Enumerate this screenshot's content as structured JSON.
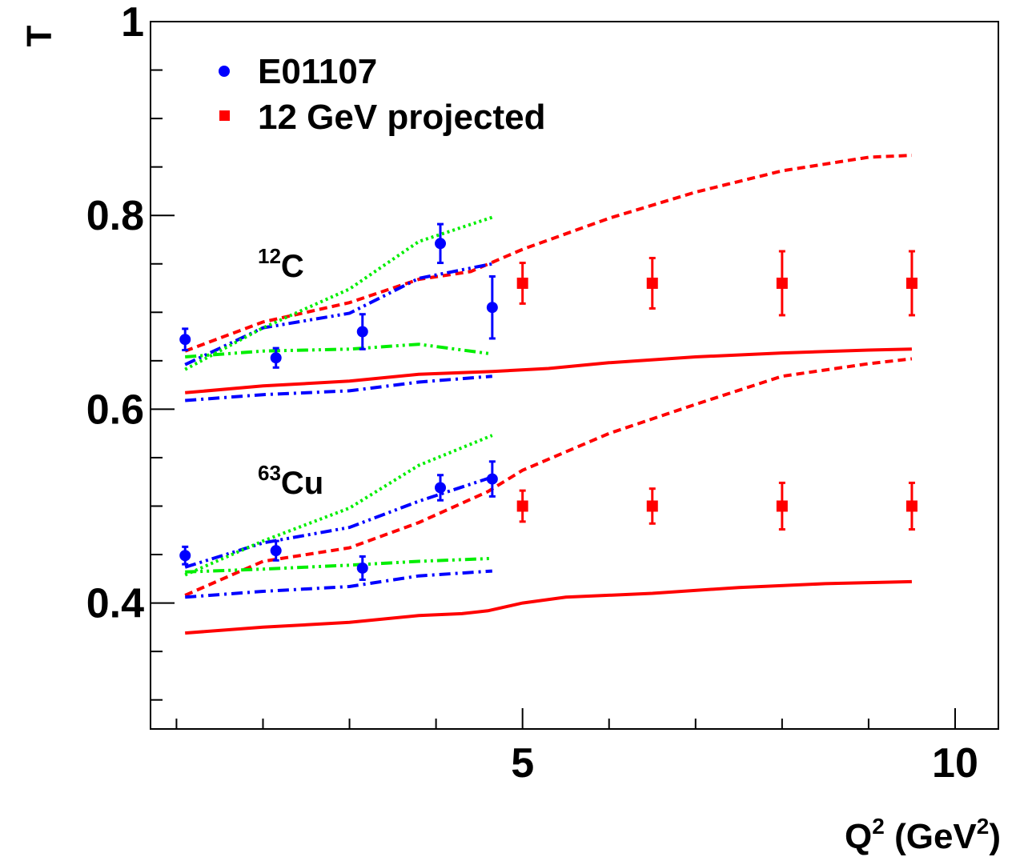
{
  "chart_data": {
    "type": "scatter",
    "xlabel": {
      "base": "Q",
      "sup": "2",
      "mid": " (GeV",
      "sup2": "2",
      "end": ")"
    },
    "ylabel": "T",
    "xlim": [
      0.7,
      10.5
    ],
    "ylim": [
      0.27,
      1.0
    ],
    "x_ticks": [
      5,
      10
    ],
    "x_tick_labels": [
      "5",
      "10"
    ],
    "y_ticks": [
      0.4,
      0.6,
      0.8,
      1.0
    ],
    "y_tick_labels": [
      "0.4",
      "0.6",
      "0.8",
      "1"
    ],
    "legend": [
      {
        "label": "E01107",
        "color": "#0000ff",
        "marker": "circle"
      },
      {
        "label": "12 GeV projected",
        "color": "#ff0000",
        "marker": "square"
      }
    ],
    "annotations": [
      {
        "sup": "12",
        "text": "C"
      },
      {
        "sup": "63",
        "text": "Cu"
      }
    ],
    "series": [
      {
        "name": "E01107",
        "nucleus": "C",
        "color": "#0000ff",
        "marker": "circle",
        "points": [
          [
            1.1,
            0.672,
            0.011
          ],
          [
            2.15,
            0.653,
            0.01
          ],
          [
            3.15,
            0.68,
            0.018
          ],
          [
            4.05,
            0.771,
            0.02
          ],
          [
            4.65,
            0.705,
            0.032
          ]
        ]
      },
      {
        "name": "E01107",
        "nucleus": "Cu",
        "color": "#0000ff",
        "marker": "circle",
        "points": [
          [
            1.1,
            0.449,
            0.009
          ],
          [
            2.15,
            0.454,
            0.01
          ],
          [
            3.15,
            0.436,
            0.012
          ],
          [
            4.05,
            0.519,
            0.013
          ],
          [
            4.65,
            0.528,
            0.018
          ]
        ]
      },
      {
        "name": "12 GeV projected",
        "nucleus": "C",
        "color": "#ff0000",
        "marker": "square",
        "points": [
          [
            5.0,
            0.73,
            0.021
          ],
          [
            6.5,
            0.73,
            0.026
          ],
          [
            8.0,
            0.73,
            0.033
          ],
          [
            9.5,
            0.73,
            0.033
          ]
        ]
      },
      {
        "name": "12 GeV projected",
        "nucleus": "Cu",
        "color": "#ff0000",
        "marker": "square",
        "points": [
          [
            5.0,
            0.5,
            0.016
          ],
          [
            6.5,
            0.5,
            0.018
          ],
          [
            8.0,
            0.5,
            0.024
          ],
          [
            9.5,
            0.5,
            0.024
          ]
        ]
      }
    ],
    "curves": [
      {
        "color": "#ff0000",
        "style": "solid",
        "nucleus": "C",
        "points": [
          [
            1.1,
            0.617
          ],
          [
            2.0,
            0.624
          ],
          [
            3.0,
            0.629
          ],
          [
            3.8,
            0.636
          ],
          [
            4.65,
            0.639
          ],
          [
            5.3,
            0.642
          ],
          [
            6.0,
            0.648
          ],
          [
            7.0,
            0.654
          ],
          [
            8.0,
            0.658
          ],
          [
            9.0,
            0.661
          ],
          [
            9.5,
            0.662
          ]
        ]
      },
      {
        "color": "#ff0000",
        "style": "dashed",
        "nucleus": "C",
        "points": [
          [
            1.1,
            0.66
          ],
          [
            2.0,
            0.69
          ],
          [
            3.0,
            0.71
          ],
          [
            3.8,
            0.734
          ],
          [
            4.4,
            0.742
          ],
          [
            5.0,
            0.765
          ],
          [
            6.0,
            0.797
          ],
          [
            7.0,
            0.824
          ],
          [
            8.0,
            0.846
          ],
          [
            9.0,
            0.86
          ],
          [
            9.5,
            0.862
          ]
        ]
      },
      {
        "color": "#0000ff",
        "style": "dashdot",
        "nucleus": "C",
        "points": [
          [
            1.1,
            0.609
          ],
          [
            2.0,
            0.615
          ],
          [
            3.0,
            0.619
          ],
          [
            3.8,
            0.628
          ],
          [
            4.65,
            0.634
          ]
        ]
      },
      {
        "color": "#0000ff",
        "style": "dashdotdot",
        "nucleus": "C",
        "points": [
          [
            1.1,
            0.646
          ],
          [
            2.0,
            0.684
          ],
          [
            3.0,
            0.699
          ],
          [
            3.8,
            0.735
          ],
          [
            4.65,
            0.75
          ]
        ]
      },
      {
        "color": "#00ee00",
        "style": "dotted",
        "nucleus": "C",
        "points": [
          [
            1.1,
            0.641
          ],
          [
            2.0,
            0.684
          ],
          [
            3.0,
            0.724
          ],
          [
            3.8,
            0.773
          ],
          [
            4.65,
            0.798
          ]
        ]
      },
      {
        "color": "#00ee00",
        "style": "dashdotdot",
        "nucleus": "C",
        "points": [
          [
            1.1,
            0.654
          ],
          [
            2.0,
            0.66
          ],
          [
            3.0,
            0.662
          ],
          [
            3.8,
            0.667
          ],
          [
            4.65,
            0.657
          ]
        ]
      },
      {
        "color": "#ff0000",
        "style": "solid",
        "nucleus": "Cu",
        "points": [
          [
            1.1,
            0.369
          ],
          [
            2.0,
            0.375
          ],
          [
            3.0,
            0.38
          ],
          [
            3.8,
            0.387
          ],
          [
            4.3,
            0.389
          ],
          [
            4.6,
            0.392
          ],
          [
            5.0,
            0.4
          ],
          [
            5.5,
            0.406
          ],
          [
            6.5,
            0.41
          ],
          [
            7.5,
            0.416
          ],
          [
            8.5,
            0.42
          ],
          [
            9.5,
            0.422
          ]
        ]
      },
      {
        "color": "#ff0000",
        "style": "dashed",
        "nucleus": "Cu",
        "points": [
          [
            1.1,
            0.408
          ],
          [
            2.0,
            0.443
          ],
          [
            3.0,
            0.457
          ],
          [
            3.8,
            0.483
          ],
          [
            4.6,
            0.515
          ],
          [
            5.0,
            0.537
          ],
          [
            6.0,
            0.575
          ],
          [
            7.0,
            0.605
          ],
          [
            8.0,
            0.634
          ],
          [
            9.0,
            0.647
          ],
          [
            9.5,
            0.652
          ]
        ]
      },
      {
        "color": "#0000ff",
        "style": "dashdot",
        "nucleus": "Cu",
        "points": [
          [
            1.1,
            0.406
          ],
          [
            2.0,
            0.412
          ],
          [
            3.0,
            0.417
          ],
          [
            3.8,
            0.428
          ],
          [
            4.65,
            0.433
          ]
        ]
      },
      {
        "color": "#0000ff",
        "style": "dashdotdot",
        "nucleus": "Cu",
        "points": [
          [
            1.1,
            0.437
          ],
          [
            2.0,
            0.462
          ],
          [
            3.0,
            0.478
          ],
          [
            3.8,
            0.505
          ],
          [
            4.65,
            0.53
          ]
        ]
      },
      {
        "color": "#00ee00",
        "style": "dotted",
        "nucleus": "Cu",
        "points": [
          [
            1.1,
            0.429
          ],
          [
            2.0,
            0.464
          ],
          [
            3.0,
            0.498
          ],
          [
            3.8,
            0.542
          ],
          [
            4.65,
            0.573
          ]
        ]
      },
      {
        "color": "#00ee00",
        "style": "dashdotdot",
        "nucleus": "Cu",
        "points": [
          [
            1.1,
            0.432
          ],
          [
            2.0,
            0.435
          ],
          [
            3.0,
            0.439
          ],
          [
            3.8,
            0.443
          ],
          [
            4.65,
            0.446
          ]
        ]
      }
    ]
  }
}
